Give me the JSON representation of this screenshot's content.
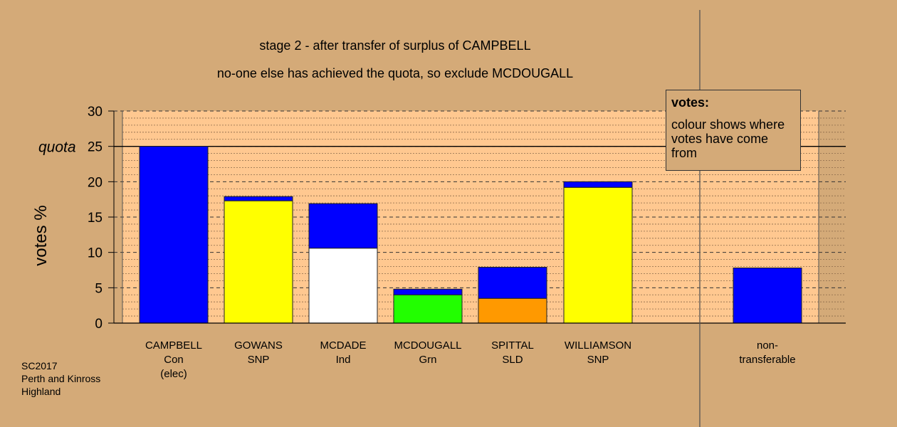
{
  "chart_data": {
    "type": "bar",
    "stacked": true,
    "title": "stage 2 - after transfer of surplus of CAMPBELL",
    "subtitle": "no-one else has achieved the quota, so exclude MCDOUGALL",
    "ylabel": "votes %",
    "ylim": [
      0,
      30
    ],
    "yticks": [
      0,
      5,
      10,
      15,
      20,
      25,
      30
    ],
    "quota": 25,
    "quota_label": "quota",
    "grid": true,
    "categories": [
      {
        "name": "CAMPBELL",
        "party": "Con",
        "note": "(elec)"
      },
      {
        "name": "GOWANS",
        "party": "SNP",
        "note": ""
      },
      {
        "name": "MCDADE",
        "party": "Ind",
        "note": ""
      },
      {
        "name": "MCDOUGALL",
        "party": "Grn",
        "note": ""
      },
      {
        "name": "SPITTAL",
        "party": "SLD",
        "note": ""
      },
      {
        "name": "WILLIAMSON",
        "party": "SNP",
        "note": ""
      },
      {
        "name": "non-",
        "party": "transferable",
        "note": ""
      }
    ],
    "bars": [
      [
        {
          "value": 25.0,
          "color": "#0000ff"
        }
      ],
      [
        {
          "value": 17.3,
          "color": "#ffff00"
        },
        {
          "value": 0.6,
          "color": "#0000ff"
        }
      ],
      [
        {
          "value": 10.6,
          "color": "#ffffff"
        },
        {
          "value": 6.3,
          "color": "#0000ff"
        }
      ],
      [
        {
          "value": 4.0,
          "color": "#22ff00"
        },
        {
          "value": 0.8,
          "color": "#0000ff"
        }
      ],
      [
        {
          "value": 3.5,
          "color": "#ff9900"
        },
        {
          "value": 4.4,
          "color": "#0000ff"
        }
      ],
      [
        {
          "value": 19.2,
          "color": "#ffff00"
        },
        {
          "value": 0.8,
          "color": "#0000ff"
        }
      ],
      [
        {
          "value": 7.8,
          "color": "#0000ff"
        }
      ]
    ]
  },
  "legend": {
    "heading": "votes:",
    "text": "colour shows where votes have come from"
  },
  "credit": [
    "SC2017",
    "Perth and Kinross",
    "Highland"
  ],
  "colors": {
    "background": "#d4aa78",
    "plot_background": "#ffc890"
  }
}
